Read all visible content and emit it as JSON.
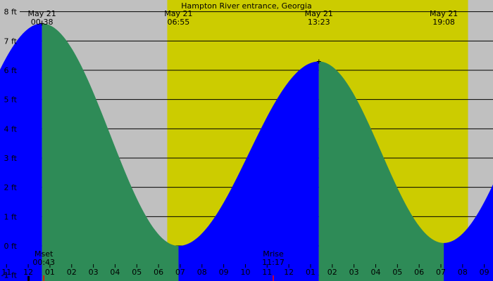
{
  "chart_data": {
    "type": "area",
    "title": "Hampton River entrance, Georgia",
    "y_unit": "ft",
    "y_range": [
      -1.2,
      8.4
    ],
    "y_ticks": [
      {
        "value": 8,
        "label": "8 ft"
      },
      {
        "value": 7,
        "label": "7 ft"
      },
      {
        "value": 6,
        "label": "6 ft"
      },
      {
        "value": 5,
        "label": "5 ft"
      },
      {
        "value": 4,
        "label": "4 ft"
      },
      {
        "value": 3,
        "label": "3 ft"
      },
      {
        "value": 2,
        "label": "2 ft"
      },
      {
        "value": 1,
        "label": "1 ft"
      },
      {
        "value": 0,
        "label": "0 ft"
      },
      {
        "value": -1,
        "label": "-1 ft"
      }
    ],
    "x_range_hours": [
      -1.3,
      21.4
    ],
    "hour_ticks": [
      {
        "hour": -1,
        "label": "11"
      },
      {
        "hour": 0,
        "label": "12"
      },
      {
        "hour": 1,
        "label": "01"
      },
      {
        "hour": 2,
        "label": "02"
      },
      {
        "hour": 3,
        "label": "03"
      },
      {
        "hour": 4,
        "label": "04"
      },
      {
        "hour": 5,
        "label": "05"
      },
      {
        "hour": 6,
        "label": "06"
      },
      {
        "hour": 7,
        "label": "07"
      },
      {
        "hour": 8,
        "label": "08"
      },
      {
        "hour": 9,
        "label": "09"
      },
      {
        "hour": 10,
        "label": "10"
      },
      {
        "hour": 11,
        "label": "11"
      },
      {
        "hour": 12,
        "label": "12"
      },
      {
        "hour": 13,
        "label": "01"
      },
      {
        "hour": 14,
        "label": "02"
      },
      {
        "hour": 15,
        "label": "03"
      },
      {
        "hour": 16,
        "label": "04"
      },
      {
        "hour": 17,
        "label": "05"
      },
      {
        "hour": 18,
        "label": "06"
      },
      {
        "hour": 19,
        "label": "07"
      },
      {
        "hour": 20,
        "label": "08"
      },
      {
        "hour": 21,
        "label": "09"
      }
    ],
    "daylight": {
      "sunrise_hour": 6.4,
      "sunset_hour": 20.25
    },
    "tide_extremes": [
      {
        "hour": 0.633,
        "height": 7.6,
        "type": "high",
        "date": "May 21",
        "time": "00:38"
      },
      {
        "hour": 6.917,
        "height": 0.0,
        "type": "low",
        "date": "May 21",
        "time": "06:55"
      },
      {
        "hour": 13.383,
        "height": 6.3,
        "type": "high",
        "date": "May 21",
        "time": "13:23"
      },
      {
        "hour": 19.133,
        "height": 0.1,
        "type": "low",
        "date": "May 21",
        "time": "19:08"
      }
    ],
    "pre_low": {
      "hour": -5.6,
      "height": 0.4
    },
    "post_high": {
      "hour": 25.6,
      "height": 7.4
    },
    "moon_events": [
      {
        "label": "Mset",
        "time": "00:43",
        "hour": 0.717
      },
      {
        "label": "Mrise",
        "time": "11:17",
        "hour": 11.283
      }
    ]
  }
}
